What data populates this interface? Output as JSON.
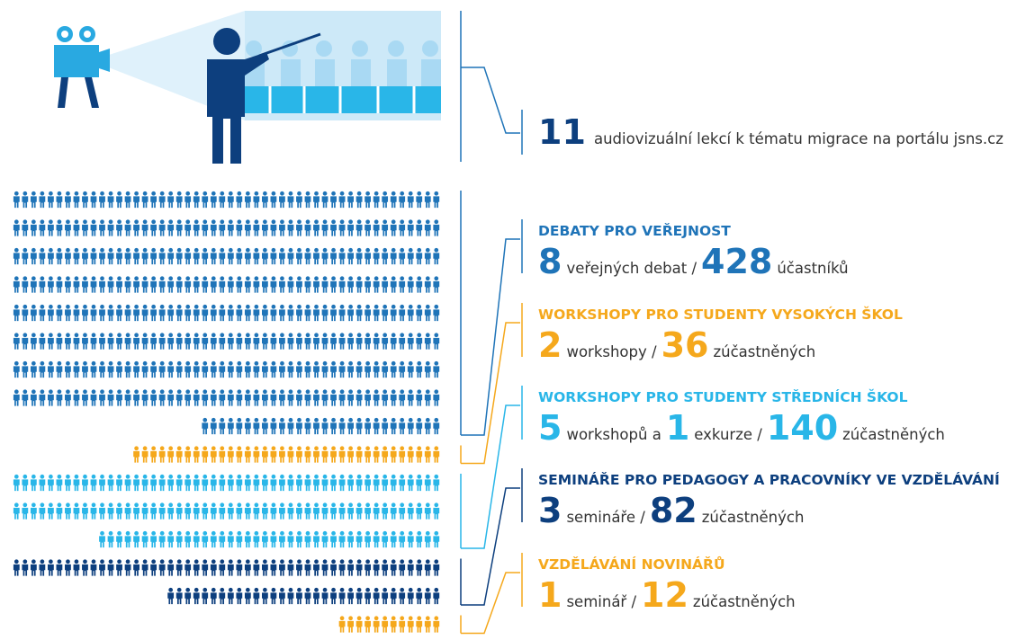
{
  "lessons": {
    "count": 11,
    "text": "audiovizuální lekcí k tématu migrace na portálu jsns.cz",
    "color": "#0d3f7e"
  },
  "sections": [
    {
      "title": "DEBATY PRO VEŘEJNOST",
      "color": "#1f74b8",
      "stats": [
        {
          "n": 8
        },
        {
          "t": "veřejných debat /"
        }
      ],
      "participants": 428,
      "participants_label": "účastníků"
    },
    {
      "title": "WORKSHOPY PRO STUDENTY VYSOKÝCH ŠKOL",
      "color": "#f5a81c",
      "stats": [
        {
          "n": 2
        },
        {
          "t": "workshopy /"
        }
      ],
      "participants": 36,
      "participants_label": "zúčastněných"
    },
    {
      "title": "WORKSHOPY PRO STUDENTY STŘEDNÍCH ŠKOL",
      "color": "#29b6e8",
      "stats": [
        {
          "n": 5
        },
        {
          "t": "workshopů a"
        },
        {
          "n": 1
        },
        {
          "t": "exkurze /"
        }
      ],
      "participants": 140,
      "participants_label": "zúčastněných"
    },
    {
      "title": "SEMINÁŘE PRO PEDAGOGY A PRACOVNÍKY VE VZDĚLÁVÁNÍ",
      "color": "#0d3f7e",
      "stats": [
        {
          "n": 3
        },
        {
          "t": "semináře /"
        }
      ],
      "participants": 82,
      "participants_label": "zúčastněných"
    },
    {
      "title": "VZDĚLÁVÁNÍ NOVINÁŘŮ",
      "color": "#f5a81c",
      "stats": [
        {
          "n": 1
        },
        {
          "t": "seminář /"
        }
      ],
      "participants": 12,
      "participants_label": "zúčastněných"
    }
  ]
}
